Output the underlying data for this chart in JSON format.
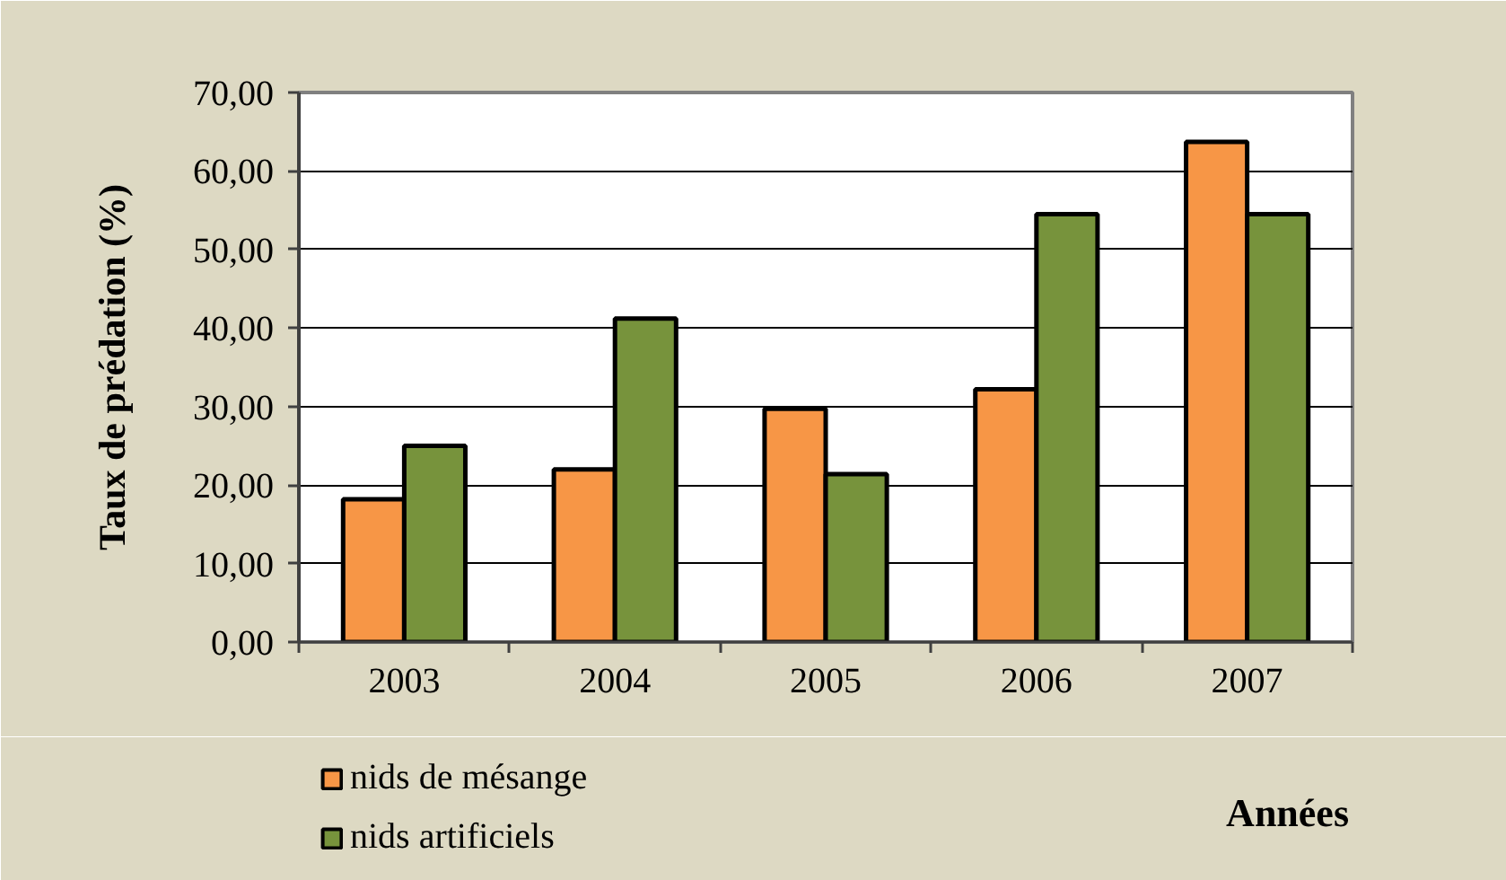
{
  "chart_data": {
    "type": "bar",
    "xlabel": "Années",
    "ylabel": "Taux de prédation (%)",
    "categories": [
      "2003",
      "2004",
      "2005",
      "2006",
      "2007"
    ],
    "series": [
      {
        "name": "nids de mésange",
        "color": "#f79646",
        "values": [
          18.2,
          22.0,
          29.7,
          32.2,
          63.7
        ]
      },
      {
        "name": "nids artificiels",
        "color": "#77933c",
        "values": [
          25.0,
          41.2,
          21.4,
          54.5,
          54.5
        ]
      }
    ],
    "ylim": [
      0,
      70
    ],
    "yticks": [
      {
        "value": 0,
        "label": "0,00"
      },
      {
        "value": 10,
        "label": "10,00"
      },
      {
        "value": 20,
        "label": "20,00"
      },
      {
        "value": 30,
        "label": "30,00"
      },
      {
        "value": 40,
        "label": "40,00"
      },
      {
        "value": 50,
        "label": "50,00"
      },
      {
        "value": 60,
        "label": "60,00"
      },
      {
        "value": 70,
        "label": "70,00"
      }
    ],
    "grid": "y",
    "legend": "bottom left"
  }
}
